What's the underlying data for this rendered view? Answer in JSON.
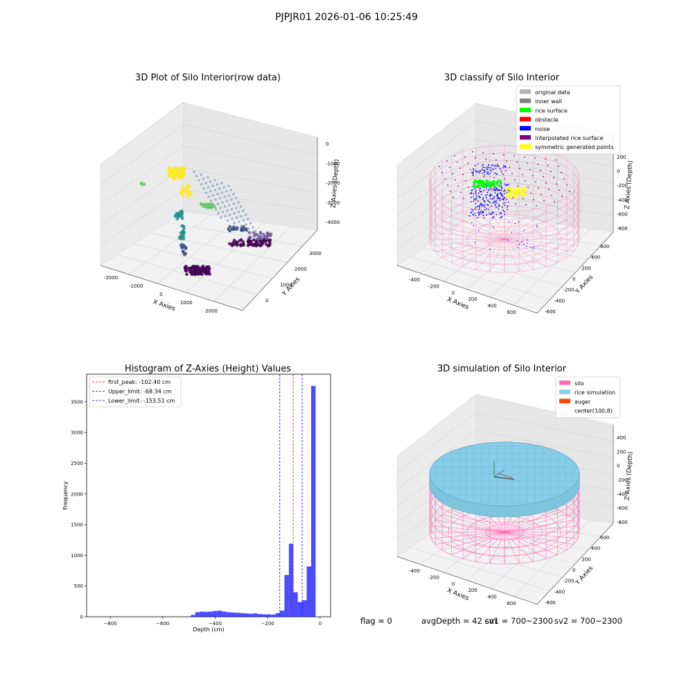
{
  "figure": {
    "title": "PJPJR01 2026-01-06 10:25:49",
    "status": {
      "flag": "flag = 0",
      "avg_depth": "avgDepth = 42 cm",
      "sv1": "sv1 = 700~2300",
      "sv2": "sv2 = 700~2300"
    }
  },
  "chart_data": [
    {
      "type": "scatter",
      "title": "3D Plot of Silo Interior(row data)",
      "xlabel": "X Axies",
      "ylabel": "Y Axies",
      "zlabel": "Z Axies (Depth)",
      "x_ticks": [
        "-2000",
        "-1000",
        "0",
        "1000",
        "2000"
      ],
      "y_ticks": [
        "0",
        "1000",
        "2000",
        "3000"
      ],
      "z_ticks": [
        "0",
        "-1000",
        "-2000",
        "-3000",
        "-4000"
      ],
      "colormap": [
        "#440154",
        "#3b528b",
        "#21918c",
        "#5ec962",
        "#fde725"
      ],
      "note_values": "approximate point clusters, colored by depth"
    },
    {
      "type": "scatter",
      "title": "3D classify of Silo Interior",
      "xlabel": "X Axies",
      "ylabel": "Y Axies",
      "zlabel": "Z Axies (Depth)",
      "x_ticks": [
        "-400",
        "-200",
        "0",
        "200",
        "400",
        "600"
      ],
      "y_ticks": [
        "-600",
        "-400",
        "-200",
        "0",
        "200",
        "400",
        "600"
      ],
      "z_ticks": [
        "200",
        "0",
        "-200",
        "-400",
        "-600",
        "-800"
      ],
      "legend": [
        {
          "label": "original data",
          "color": "#b3b3b3"
        },
        {
          "label": "inner wall",
          "color": "#808080"
        },
        {
          "label": "rice surface",
          "color": "#00ff00"
        },
        {
          "label": "obstacle",
          "color": "#ff0000"
        },
        {
          "label": "noise",
          "color": "#0000ff"
        },
        {
          "label": "interpolated rice surface",
          "color": "#800080"
        },
        {
          "label": "symmetric generated points",
          "color": "#ffff00"
        }
      ],
      "legend_position": "top-right"
    },
    {
      "type": "bar",
      "title": "Histogram of Z-Axies (Height) Values",
      "xlabel": "Depth (cm)",
      "ylabel": "Frequency",
      "xlim": [
        -890,
        40
      ],
      "ylim": [
        0,
        3950
      ],
      "x_ticks": [
        -800,
        -600,
        -400,
        -200,
        0
      ],
      "y_ticks": [
        0,
        500,
        1000,
        1500,
        2000,
        2500,
        3000,
        3500
      ],
      "bin_width": 17,
      "bins": [
        {
          "start": -493,
          "value": 30
        },
        {
          "start": -476,
          "value": 75
        },
        {
          "start": -459,
          "value": 85
        },
        {
          "start": -442,
          "value": 80
        },
        {
          "start": -425,
          "value": 85
        },
        {
          "start": -408,
          "value": 95
        },
        {
          "start": -391,
          "value": 100
        },
        {
          "start": -374,
          "value": 85
        },
        {
          "start": -357,
          "value": 75
        },
        {
          "start": -340,
          "value": 70
        },
        {
          "start": -323,
          "value": 65
        },
        {
          "start": -306,
          "value": 60
        },
        {
          "start": -289,
          "value": 55
        },
        {
          "start": -272,
          "value": 50
        },
        {
          "start": -255,
          "value": 55
        },
        {
          "start": -238,
          "value": 45
        },
        {
          "start": -221,
          "value": 40
        },
        {
          "start": -204,
          "value": 40
        },
        {
          "start": -187,
          "value": 35
        },
        {
          "start": -170,
          "value": 60
        },
        {
          "start": -153,
          "value": 100
        },
        {
          "start": -136,
          "value": 680
        },
        {
          "start": -119,
          "value": 1190
        },
        {
          "start": -102,
          "value": 400
        },
        {
          "start": -85,
          "value": 240
        },
        {
          "start": -68,
          "value": 270
        },
        {
          "start": -51,
          "value": 820
        },
        {
          "start": -34,
          "value": 3760
        }
      ],
      "bar_color": "#0000ff",
      "vlines": [
        {
          "label": "first_peak: -102.40 cm",
          "x": -102.4,
          "color": "#ff0000"
        },
        {
          "label": "Upper_limit: -68.34 cm",
          "x": -68.34,
          "color": "#0000ff"
        },
        {
          "label": "Lower_limit: -153.51 cm",
          "x": -153.51,
          "color": "#0000ff"
        }
      ],
      "legend_position": "top-left"
    },
    {
      "type": "scatter",
      "title": "3D simulation of Silo Interior",
      "xlabel": "X Axies",
      "ylabel": "Y Axies",
      "zlabel": "Z Axies (Depth)",
      "x_ticks": [
        "-400",
        "-200",
        "0",
        "200",
        "400",
        "600"
      ],
      "y_ticks": [
        "-600",
        "-400",
        "-200",
        "0",
        "200",
        "400",
        "600"
      ],
      "z_ticks": [
        "400",
        "200",
        "0",
        "-200",
        "-400",
        "-600",
        "-800"
      ],
      "legend": [
        {
          "label": "silo",
          "color": "#ff69b4"
        },
        {
          "label": "rice simulation",
          "color": "#87ceeb"
        },
        {
          "label": "auger",
          "color": "#ff4500"
        },
        {
          "label": "center(100,8)",
          "color": ""
        }
      ],
      "legend_position": "top-right"
    }
  ]
}
